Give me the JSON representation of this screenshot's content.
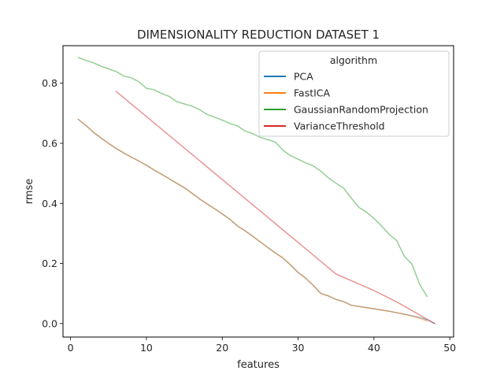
{
  "chart_data": {
    "type": "line",
    "title": "DIMENSIONALITY REDUCTION DATASET 1",
    "xlabel": "features",
    "ylabel": "rmse",
    "xlim": [
      -1,
      50.5
    ],
    "ylim": [
      -0.045,
      0.925
    ],
    "xticks": [
      0,
      10,
      20,
      30,
      40,
      50
    ],
    "yticks": [
      0.0,
      0.2,
      0.4,
      0.6,
      0.8
    ],
    "xtick_labels": [
      "0",
      "10",
      "20",
      "30",
      "40",
      "50"
    ],
    "ytick_labels": [
      "0.0",
      "0.2",
      "0.4",
      "0.6",
      "0.8"
    ],
    "grid": false,
    "legend": {
      "title": "algorithm",
      "placement": "top-right"
    },
    "series": [
      {
        "name": "PCA",
        "color": "#1f77b4",
        "x": [
          1,
          2,
          3,
          4,
          5,
          6,
          7,
          8,
          9,
          10,
          11,
          12,
          13,
          14,
          15,
          16,
          17,
          18,
          19,
          20,
          21,
          22,
          23,
          24,
          25,
          26,
          27,
          28,
          29,
          30,
          31,
          32,
          33,
          34,
          35,
          36,
          37,
          38,
          39,
          40,
          41,
          42,
          43,
          44,
          45,
          46,
          47,
          48
        ],
        "y": [
          0.68,
          0.66,
          0.637,
          0.618,
          0.6,
          0.583,
          0.568,
          0.554,
          0.541,
          0.527,
          0.511,
          0.497,
          0.482,
          0.467,
          0.452,
          0.434,
          0.415,
          0.398,
          0.382,
          0.365,
          0.347,
          0.325,
          0.309,
          0.291,
          0.272,
          0.253,
          0.235,
          0.218,
          0.195,
          0.17,
          0.151,
          0.127,
          0.1,
          0.092,
          0.08,
          0.073,
          0.061,
          0.057,
          0.053,
          0.049,
          0.045,
          0.041,
          0.036,
          0.031,
          0.026,
          0.02,
          0.013,
          0.0
        ]
      },
      {
        "name": "FastICA",
        "color": "#ff7f0e",
        "x": [
          1,
          2,
          3,
          4,
          5,
          6,
          7,
          8,
          9,
          10,
          11,
          12,
          13,
          14,
          15,
          16,
          17,
          18,
          19,
          20,
          21,
          22,
          23,
          24,
          25,
          26,
          27,
          28,
          29,
          30,
          31,
          32,
          33,
          34,
          35,
          36,
          37,
          38,
          39,
          40,
          41,
          42,
          43,
          44,
          45,
          46,
          47
        ],
        "y": [
          0.68,
          0.66,
          0.637,
          0.618,
          0.6,
          0.583,
          0.568,
          0.554,
          0.541,
          0.527,
          0.511,
          0.497,
          0.482,
          0.467,
          0.452,
          0.434,
          0.415,
          0.398,
          0.382,
          0.365,
          0.347,
          0.325,
          0.309,
          0.291,
          0.272,
          0.253,
          0.235,
          0.218,
          0.195,
          0.17,
          0.151,
          0.127,
          0.1,
          0.092,
          0.08,
          0.073,
          0.061,
          0.057,
          0.053,
          0.049,
          0.045,
          0.041,
          0.036,
          0.031,
          0.025,
          0.018,
          0.008
        ]
      },
      {
        "name": "GaussianRandomProjection",
        "color": "#2ca02c",
        "x": [
          1,
          2,
          3,
          4,
          5,
          6,
          7,
          8,
          9,
          10,
          11,
          12,
          13,
          14,
          15,
          16,
          17,
          18,
          19,
          20,
          21,
          22,
          23,
          24,
          25,
          26,
          27,
          28,
          29,
          30,
          31,
          32,
          33,
          34,
          35,
          36,
          37,
          38,
          39,
          40,
          41,
          42,
          43,
          44,
          45,
          46,
          47
        ],
        "y": [
          0.886,
          0.876,
          0.868,
          0.857,
          0.848,
          0.839,
          0.824,
          0.818,
          0.805,
          0.783,
          0.778,
          0.766,
          0.756,
          0.739,
          0.731,
          0.724,
          0.712,
          0.696,
          0.687,
          0.677,
          0.666,
          0.658,
          0.641,
          0.632,
          0.62,
          0.612,
          0.604,
          0.577,
          0.559,
          0.547,
          0.535,
          0.525,
          0.507,
          0.485,
          0.467,
          0.451,
          0.418,
          0.387,
          0.371,
          0.35,
          0.325,
          0.297,
          0.276,
          0.224,
          0.198,
          0.132,
          0.09
        ]
      },
      {
        "name": "VarianceThreshold",
        "color": "#d62728",
        "x": [
          6,
          35,
          40,
          43,
          48
        ],
        "y": [
          0.773,
          0.165,
          0.11,
          0.072,
          0.0
        ]
      }
    ]
  }
}
